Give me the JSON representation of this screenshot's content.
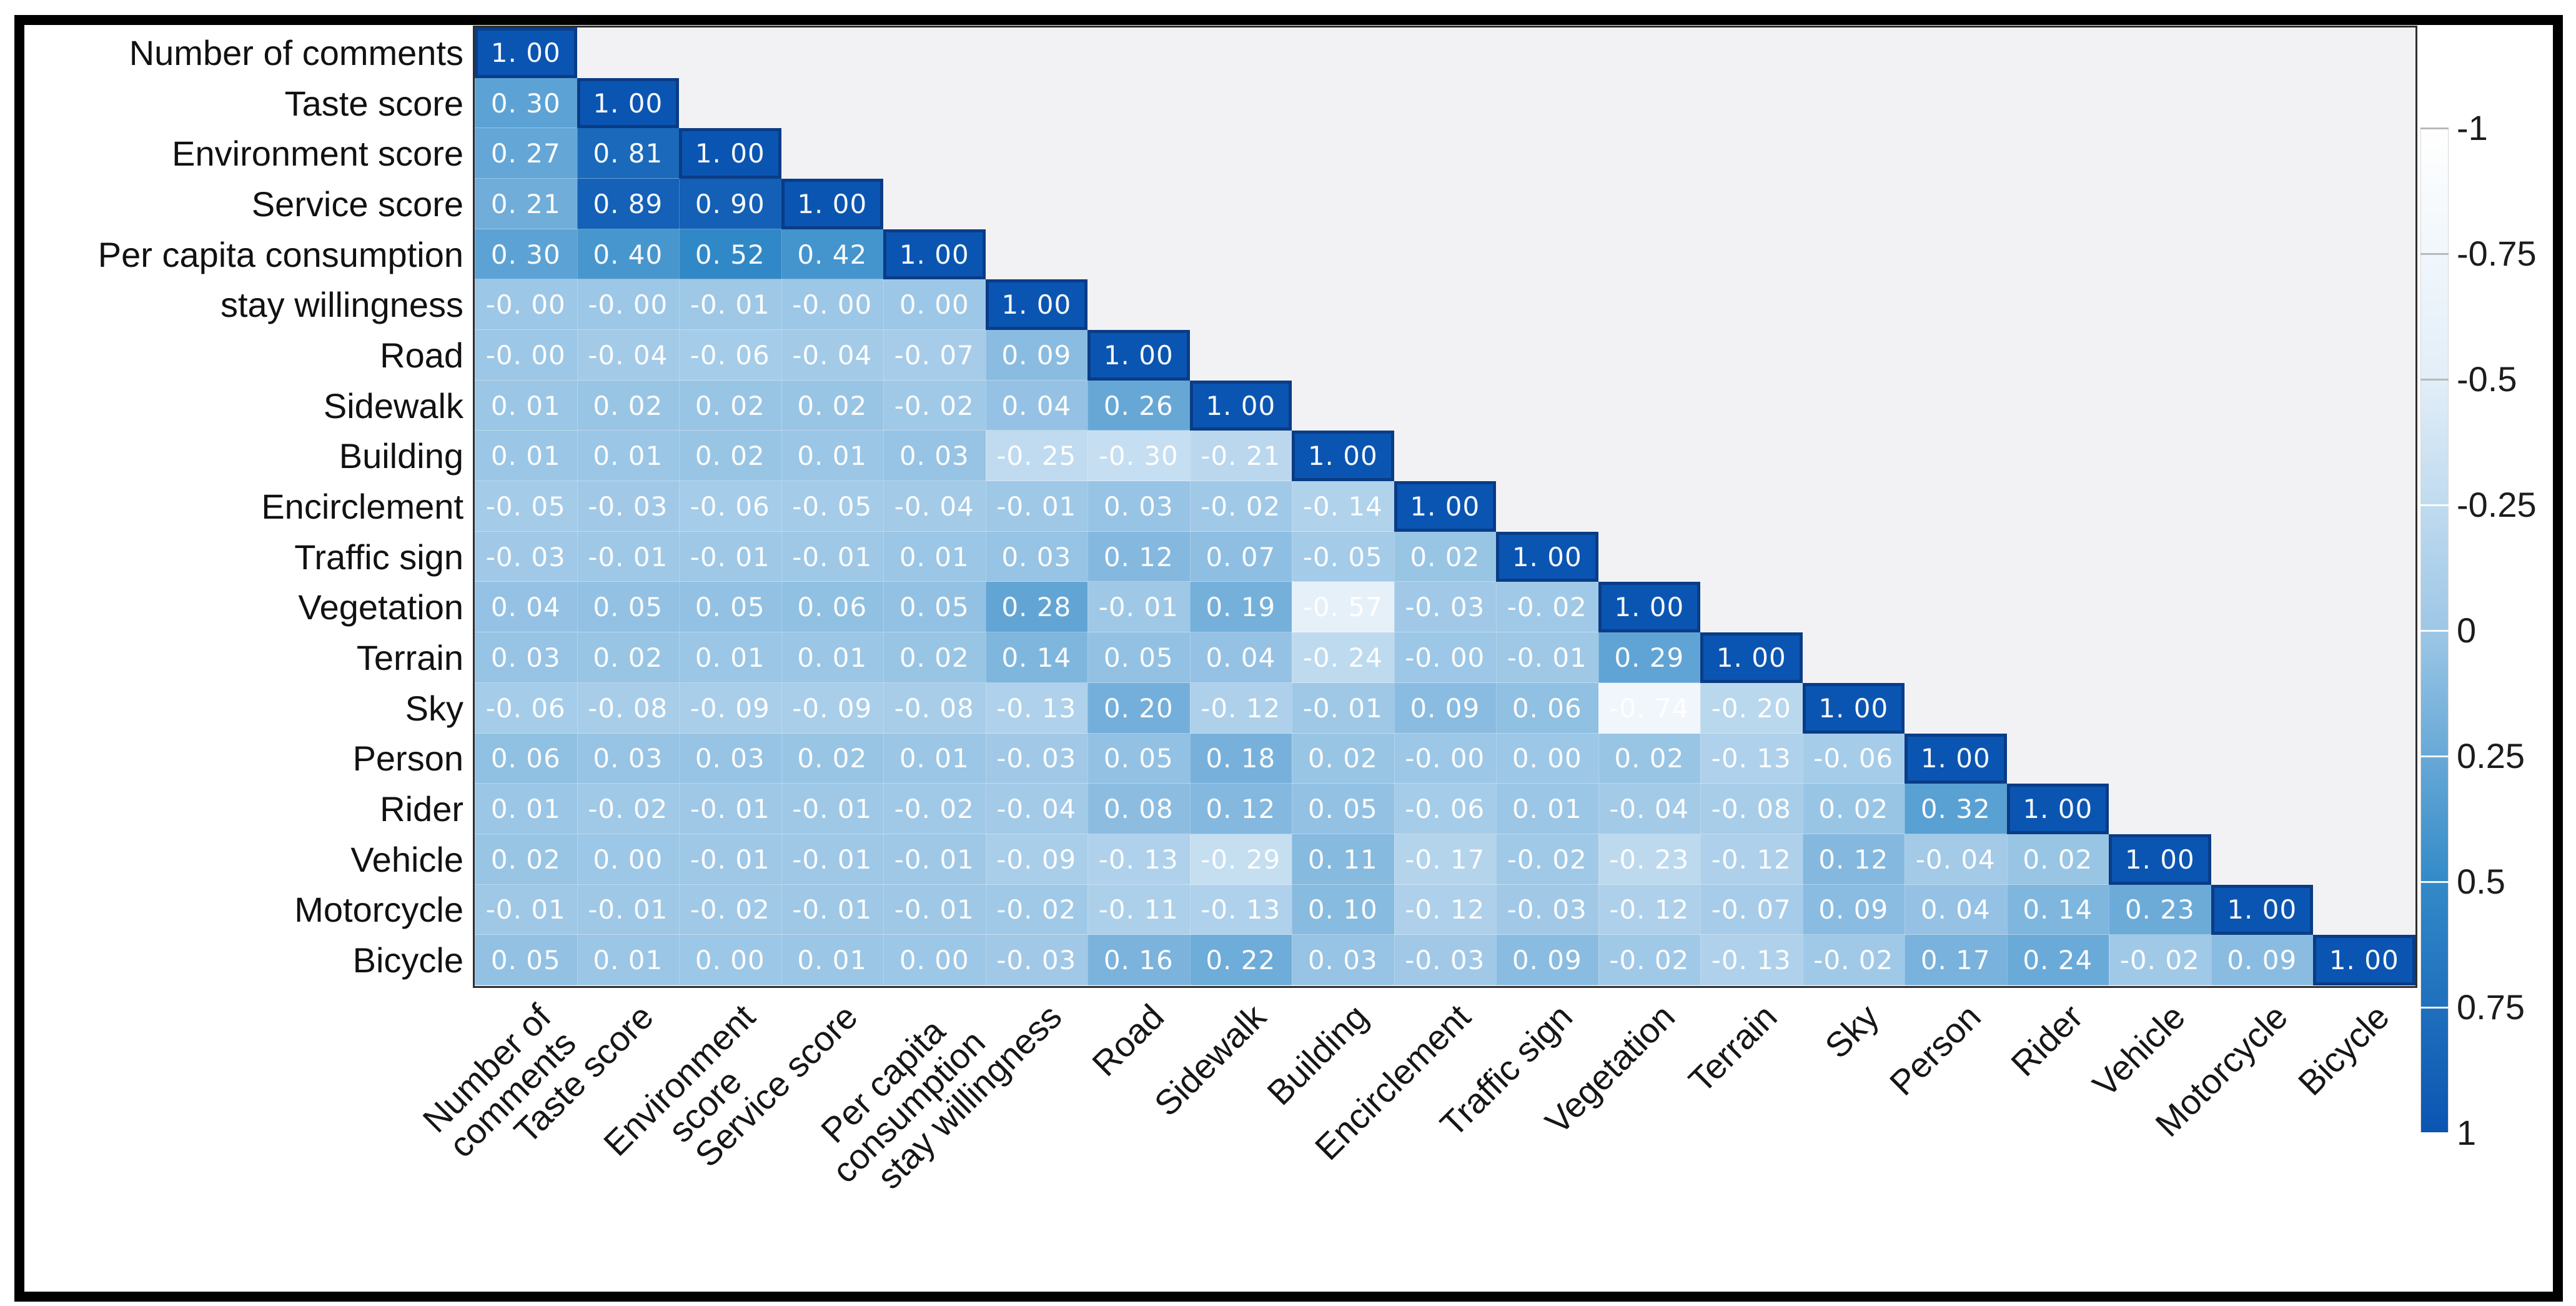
{
  "figure": {
    "background": "#ffffff",
    "outer_border_color": "#000000",
    "plot_background": "#f2f2f4",
    "spine_color": "#2e2e2e"
  },
  "chart_data": {
    "type": "heatmap",
    "subtype": "lower-triangular correlation matrix",
    "grid": false,
    "variables": [
      "Number of comments",
      "Taste score",
      "Environment score",
      "Service score",
      "Per capita consumption",
      "stay willingness",
      "Road",
      "Sidewalk",
      "Building",
      "Encirclement",
      "Traffic sign",
      "Vegetation",
      "Terrain",
      "Sky",
      "Person",
      "Rider",
      "Vehicle",
      "Motorcycle",
      "Bicycle"
    ],
    "x_tick_labels": [
      "Number of\ncomments",
      "Taste score",
      "Environment\nscore",
      "Service score",
      "Per capita\nconsumption",
      "stay willingness",
      "Road",
      "Sidewalk",
      "Building",
      "Encirclement",
      "Traffic sign",
      "Vegetation",
      "Terrain",
      "Sky",
      "Person",
      "Rider",
      "Vehicle",
      "Motorcycle",
      "Bicycle"
    ],
    "matrix_lower_triangle": [
      [
        "1.00"
      ],
      [
        "0.30",
        "1.00"
      ],
      [
        "0.27",
        "0.81",
        "1.00"
      ],
      [
        "0.21",
        "0.89",
        "0.90",
        "1.00"
      ],
      [
        "0.30",
        "0.40",
        "0.52",
        "0.42",
        "1.00"
      ],
      [
        "-0.00",
        "-0.00",
        "-0.01",
        "-0.00",
        "0.00",
        "1.00"
      ],
      [
        "-0.00",
        "-0.04",
        "-0.06",
        "-0.04",
        "-0.07",
        "0.09",
        "1.00"
      ],
      [
        "0.01",
        "0.02",
        "0.02",
        "0.02",
        "-0.02",
        "0.04",
        "0.26",
        "1.00"
      ],
      [
        "0.01",
        "0.01",
        "0.02",
        "0.01",
        "0.03",
        "-0.25",
        "-0.30",
        "-0.21",
        "1.00"
      ],
      [
        "-0.05",
        "-0.03",
        "-0.06",
        "-0.05",
        "-0.04",
        "-0.01",
        "0.03",
        "-0.02",
        "-0.14",
        "1.00"
      ],
      [
        "-0.03",
        "-0.01",
        "-0.01",
        "-0.01",
        "0.01",
        "0.03",
        "0.12",
        "0.07",
        "-0.05",
        "0.02",
        "1.00"
      ],
      [
        "0.04",
        "0.05",
        "0.05",
        "0.06",
        "0.05",
        "0.28",
        "-0.01",
        "0.19",
        "-0.57",
        "-0.03",
        "-0.02",
        "1.00"
      ],
      [
        "0.03",
        "0.02",
        "0.01",
        "0.01",
        "0.02",
        "0.14",
        "0.05",
        "0.04",
        "-0.24",
        "-0.00",
        "-0.01",
        "0.29",
        "1.00"
      ],
      [
        "-0.06",
        "-0.08",
        "-0.09",
        "-0.09",
        "-0.08",
        "-0.13",
        "0.20",
        "-0.12",
        "-0.01",
        "0.09",
        "0.06",
        "-0.74",
        "-0.20",
        "1.00"
      ],
      [
        "0.06",
        "0.03",
        "0.03",
        "0.02",
        "0.01",
        "-0.03",
        "0.05",
        "0.18",
        "0.02",
        "-0.00",
        "0.00",
        "0.02",
        "-0.13",
        "-0.06",
        "1.00"
      ],
      [
        "0.01",
        "-0.02",
        "-0.01",
        "-0.01",
        "-0.02",
        "-0.04",
        "0.08",
        "0.12",
        "0.05",
        "-0.06",
        "0.01",
        "-0.04",
        "-0.08",
        "0.02",
        "0.32",
        "1.00"
      ],
      [
        "0.02",
        "0.00",
        "-0.01",
        "-0.01",
        "-0.01",
        "-0.09",
        "-0.13",
        "-0.29",
        "0.11",
        "-0.17",
        "-0.02",
        "-0.23",
        "-0.12",
        "0.12",
        "-0.04",
        "0.02",
        "1.00"
      ],
      [
        "-0.01",
        "-0.01",
        "-0.02",
        "-0.01",
        "-0.01",
        "-0.02",
        "-0.11",
        "-0.13",
        "0.10",
        "-0.12",
        "-0.03",
        "-0.12",
        "-0.07",
        "0.09",
        "0.04",
        "0.14",
        "0.23",
        "1.00"
      ],
      [
        "0.05",
        "0.01",
        "0.00",
        "0.01",
        "0.00",
        "-0.03",
        "0.16",
        "0.22",
        "0.03",
        "-0.03",
        "0.09",
        "-0.02",
        "-0.13",
        "-0.02",
        "0.17",
        "0.24",
        "-0.02",
        "0.09",
        "1.00"
      ]
    ],
    "value_text_color": "#ffffff",
    "colormap": {
      "stops": [
        {
          "v": -1.0,
          "color": "#ffffff"
        },
        {
          "v": -0.5,
          "color": "#e2eef8"
        },
        {
          "v": 0.0,
          "color": "#9dc7e6"
        },
        {
          "v": 0.5,
          "color": "#338ac8"
        },
        {
          "v": 1.0,
          "color": "#0b55b2"
        }
      ],
      "diagonal_cell_border": "#0a3c86"
    },
    "colorbar": {
      "position": "right",
      "orientation": "vertical",
      "min_at_top": true,
      "tick_labels": [
        "-1",
        "-0.75",
        "-0.5",
        "-0.25",
        "0",
        "0.25",
        "0.5",
        "0.75",
        "1"
      ],
      "tick_values": [
        -1,
        -0.75,
        -0.5,
        -0.25,
        0,
        0.25,
        0.5,
        0.75,
        1
      ]
    }
  }
}
